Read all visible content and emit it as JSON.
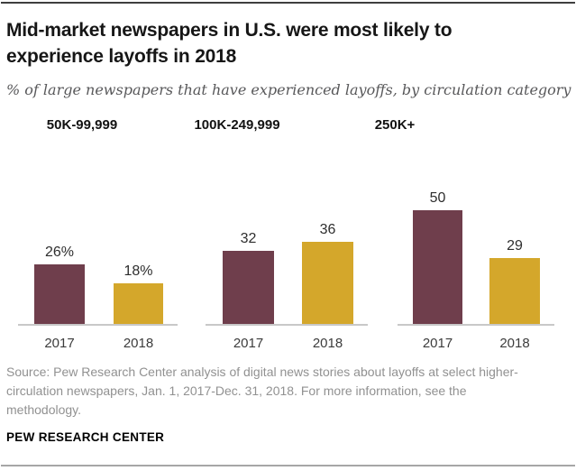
{
  "header": {
    "title": "Mid-market newspapers in U.S. were most likely to experience layoffs in 2018",
    "subtitle": "% of large newspapers that have experienced layoffs, by circulation category"
  },
  "chart_data": {
    "type": "bar",
    "units": "%",
    "categories": [
      "2017",
      "2018"
    ],
    "groups": [
      {
        "label": "50K-99,999",
        "values": [
          26,
          18
        ],
        "value_labels": [
          "26%",
          "18%"
        ]
      },
      {
        "label": "100K-249,999",
        "values": [
          32,
          36
        ],
        "value_labels": [
          "32",
          "36"
        ]
      },
      {
        "label": "250K+",
        "values": [
          50,
          29
        ],
        "value_labels": [
          "50",
          "29"
        ]
      }
    ],
    "series_colors": {
      "2017": "#6f3e4c",
      "2018": "#d4a72b"
    },
    "ylim": [
      0,
      55
    ],
    "grid": false,
    "legend": "none"
  },
  "footer": {
    "source": "Source: Pew Research Center analysis of digital news stories about layoffs at select higher-circulation newspapers, Jan. 1, 2017-Dec. 31, 2018. For more information, see the methodology.",
    "branding": "PEW RESEARCH CENTER"
  },
  "colors": {
    "baseline": "#c8c8c8",
    "top_rule": "#3f3f3f",
    "bottom_rule": "#a6a6a6"
  }
}
